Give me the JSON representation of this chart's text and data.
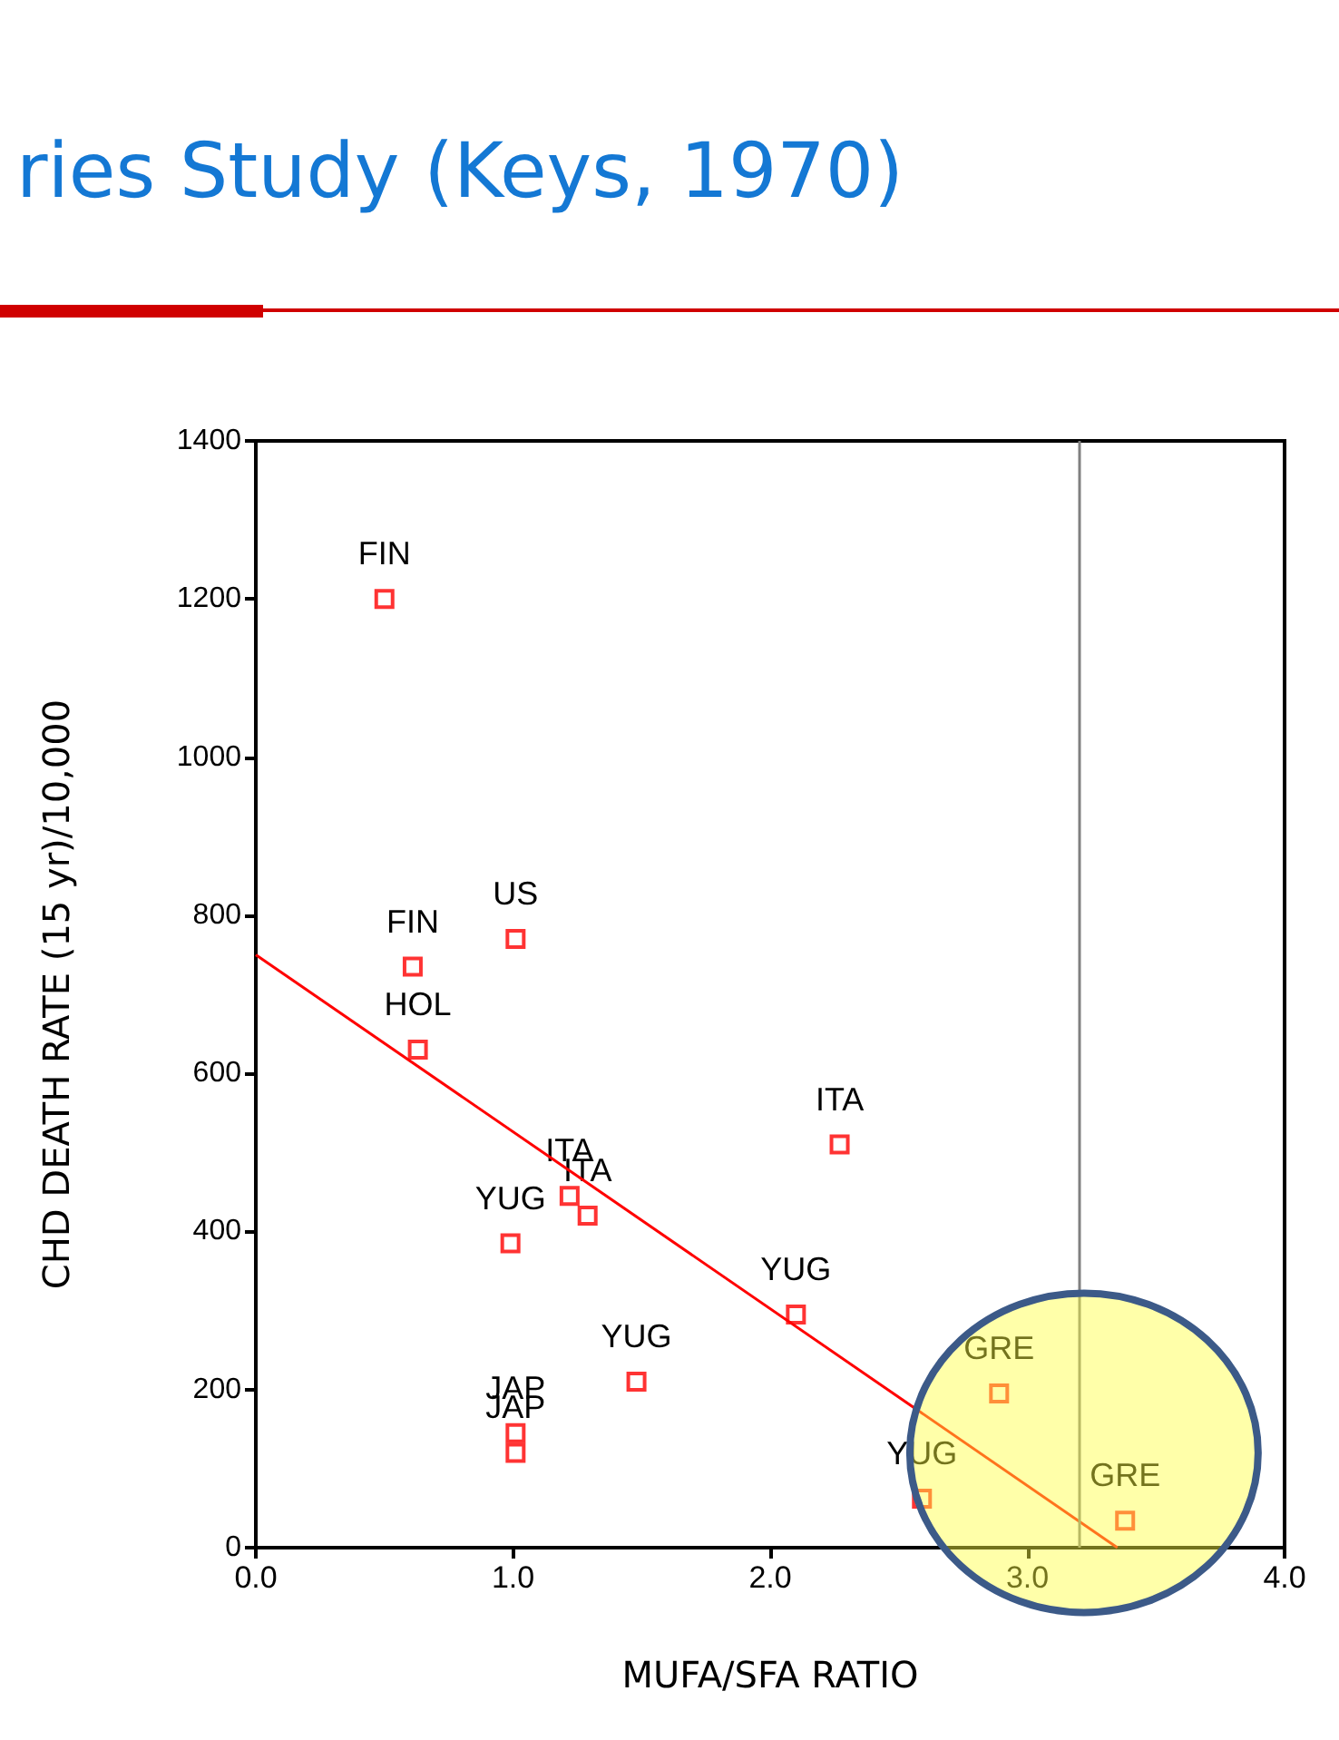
{
  "chart_data": {
    "type": "scatter",
    "title": "ries Study (Keys, 1970)",
    "xlabel": "MUFA/SFA RATIO",
    "ylabel": "CHD DEATH RATE (15 yr)/10,000",
    "xlim": [
      0,
      4
    ],
    "xticks": [
      {
        "value": 0,
        "label": "0.0"
      },
      {
        "value": 1,
        "label": "1.0"
      },
      {
        "value": 2,
        "label": "2.0"
      },
      {
        "value": 3,
        "label": "3.0"
      },
      {
        "value": 4,
        "label": "4.0"
      }
    ],
    "ylim": [
      0,
      1400
    ],
    "yticks": [
      0,
      200,
      400,
      600,
      800,
      1000,
      1200,
      1400
    ],
    "marker": "square",
    "series": [
      {
        "color": "#ff0000",
        "x": [
          0.5,
          0.61,
          1.01,
          0.63,
          2.27,
          1.22,
          1.29,
          0.99,
          2.1,
          1.48,
          1.01,
          1.01,
          2.89,
          2.59,
          3.38
        ],
        "values": [
          1200,
          735,
          770,
          630,
          510,
          445,
          420,
          385,
          295,
          210,
          145,
          120,
          195,
          62,
          34
        ]
      },
      {
        "type": "line",
        "color": "#ff0000",
        "marker": "none",
        "x": [
          0,
          3.35
        ],
        "values": [
          750,
          0
        ]
      }
    ],
    "ref_lines": [
      {
        "axis": "x",
        "value": 3.2,
        "label": null,
        "color": "#808080"
      }
    ],
    "annotations": [
      {
        "text": "FIN",
        "x": 0.5,
        "y": 1200
      },
      {
        "text": "FIN",
        "x": 0.61,
        "y": 735
      },
      {
        "text": "US",
        "x": 1.01,
        "y": 770
      },
      {
        "text": "HOL",
        "x": 0.63,
        "y": 630
      },
      {
        "text": "ITA",
        "x": 2.27,
        "y": 510
      },
      {
        "text": "ITA",
        "x": 1.22,
        "y": 445
      },
      {
        "text": "ITA",
        "x": 1.29,
        "y": 420
      },
      {
        "text": "YUG",
        "x": 0.99,
        "y": 385
      },
      {
        "text": "YUG",
        "x": 2.1,
        "y": 295
      },
      {
        "text": "YUG",
        "x": 1.48,
        "y": 210
      },
      {
        "text": "JAP",
        "x": 1.01,
        "y": 145
      },
      {
        "text": "JAP",
        "x": 1.01,
        "y": 120
      },
      {
        "text": "GRE",
        "x": 2.89,
        "y": 195
      },
      {
        "text": "YUG",
        "x": 2.59,
        "y": 62
      },
      {
        "text": "GRE",
        "x": 3.38,
        "y": 34
      }
    ]
  }
}
